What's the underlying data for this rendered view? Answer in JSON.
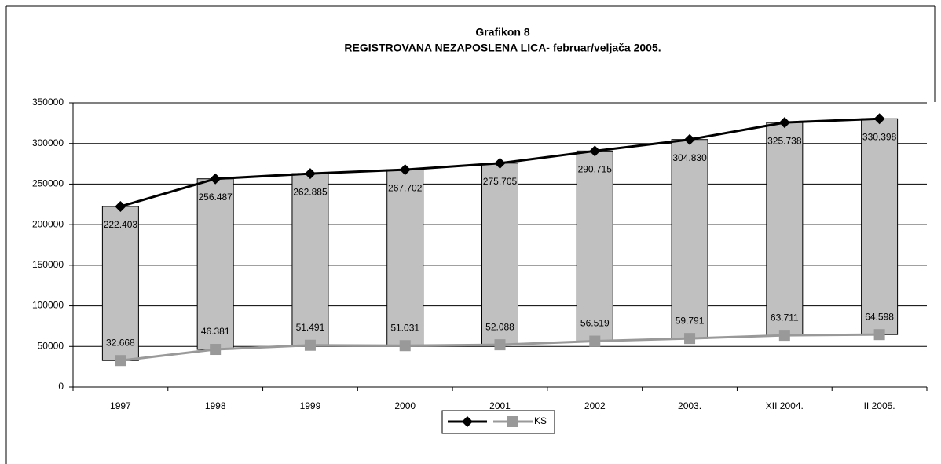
{
  "chart_data": {
    "type": "line",
    "title": "Grafikon 8",
    "subtitle": "REGISTROVANA NEZAPOSLENA LICA- februar/veljača 2005.",
    "categories": [
      "1997",
      "1998",
      "1999",
      "2000",
      "2001",
      "2002",
      "2003.",
      "XII  2004.",
      "II 2005."
    ],
    "series": [
      {
        "color": "#000000",
        "marker": "diamond",
        "values": [
          222403,
          256487,
          262885,
          267702,
          275705,
          290715,
          304830,
          325738,
          330398
        ],
        "value_labels": [
          "222.403",
          "256.487",
          "262.885",
          "267.702",
          "275.705",
          "290.715",
          "304.830",
          "325.738",
          "330.398"
        ]
      },
      {
        "name": "KS",
        "color": "#999999",
        "marker": "square",
        "values": [
          32668,
          46381,
          51491,
          51031,
          52088,
          56519,
          59791,
          63711,
          64598
        ],
        "value_labels": [
          "32.668",
          "46.381",
          "51.491",
          "51.031",
          "52.088",
          "56.519",
          "59.791",
          "63.711",
          "64.598"
        ]
      }
    ],
    "high_low_bars": {
      "color": "#c0c0c0"
    },
    "ylim": [
      0,
      350000
    ],
    "yticks": [
      0,
      50000,
      100000,
      150000,
      200000,
      250000,
      300000,
      350000
    ],
    "grid": true,
    "legend": "bottom"
  }
}
